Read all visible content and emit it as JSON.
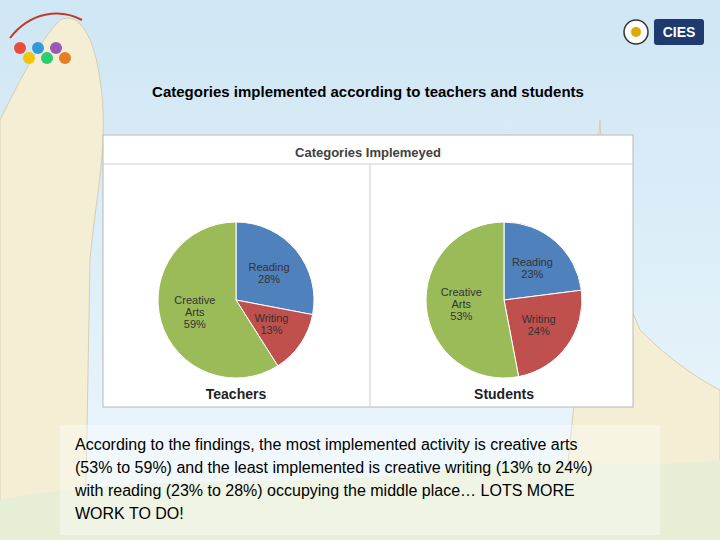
{
  "header": {
    "title": "Categories implemented according to teachers and students",
    "logo_text": "CIES"
  },
  "figure_title": "Categories Implemeyed",
  "chart_data": [
    {
      "type": "pie",
      "title": "Teachers",
      "categories": [
        "Reading",
        "Writing",
        "Creative Arts"
      ],
      "values": [
        28,
        13,
        59
      ],
      "value_labels": [
        "28%",
        "13%",
        "59%"
      ],
      "colors": [
        "#4f81bd",
        "#c0504d",
        "#9bbb59"
      ],
      "data_labels": true
    },
    {
      "type": "pie",
      "title": "Students",
      "categories": [
        "Reading",
        "Writing",
        "Creative Arts"
      ],
      "values": [
        23,
        24,
        53
      ],
      "value_labels": [
        "23%",
        "24%",
        "53%"
      ],
      "colors": [
        "#4f81bd",
        "#c0504d",
        "#9bbb59"
      ],
      "data_labels": true
    }
  ],
  "caption_lines": [
    "According to the findings, the most implemented activity is creative arts",
    "(53% to 59%) and the least implemented is creative writing (13% to 24%)",
    "with reading (23% to 28%) occupying the middle place… LOTS MORE",
    "WORK TO DO!"
  ]
}
